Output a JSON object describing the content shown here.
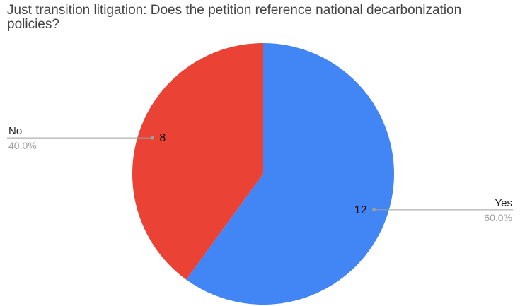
{
  "chart_data": {
    "type": "pie",
    "title": "Just transition litigation: Does the petition reference national decarbonization policies?",
    "slices": [
      {
        "label": "Yes",
        "value": 12,
        "percent": "60.0%",
        "color": "#4285f4"
      },
      {
        "label": "No",
        "value": 8,
        "percent": "40.0%",
        "color": "#ea4335"
      }
    ],
    "start_angle_deg": 0,
    "direction": "clockwise",
    "legend": "callout-labels"
  }
}
